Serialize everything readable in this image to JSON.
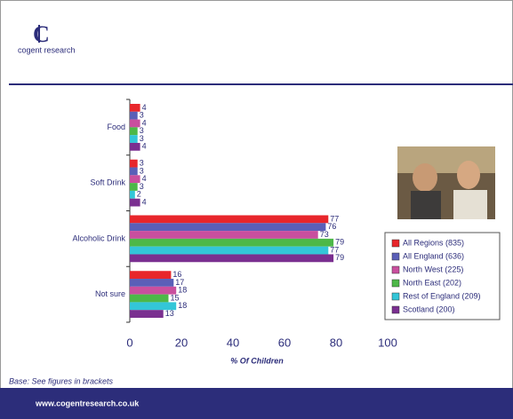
{
  "logo": {
    "text": "cogent research"
  },
  "footer": {
    "url": "www.cogentresearch.co.uk"
  },
  "chart_data": {
    "type": "bar",
    "orientation": "horizontal",
    "categories": [
      "Food",
      "Soft Drink",
      "Alcoholic Drink",
      "Not sure"
    ],
    "series": [
      {
        "name": "All Regions (835)",
        "color": "#e8262b",
        "values": [
          4,
          3,
          77,
          16
        ]
      },
      {
        "name": "All England (636)",
        "color": "#5a5fb8",
        "values": [
          3,
          3,
          76,
          17
        ]
      },
      {
        "name": "North West (225)",
        "color": "#c94f9e",
        "values": [
          4,
          4,
          73,
          18
        ]
      },
      {
        "name": "North East (202)",
        "color": "#4db848",
        "values": [
          3,
          3,
          79,
          15
        ]
      },
      {
        "name": "Rest of England (209)",
        "color": "#33c6d8",
        "values": [
          3,
          2,
          77,
          18
        ]
      },
      {
        "name": "Scotland (200)",
        "color": "#7a2f90",
        "values": [
          4,
          4,
          79,
          13
        ]
      }
    ],
    "xlim": [
      0,
      100
    ],
    "xticks": [
      0,
      20,
      40,
      60,
      80,
      100
    ],
    "xlabel": "% Of Children",
    "note": "Base: See figures in brackets",
    "legend": "lower-right"
  }
}
